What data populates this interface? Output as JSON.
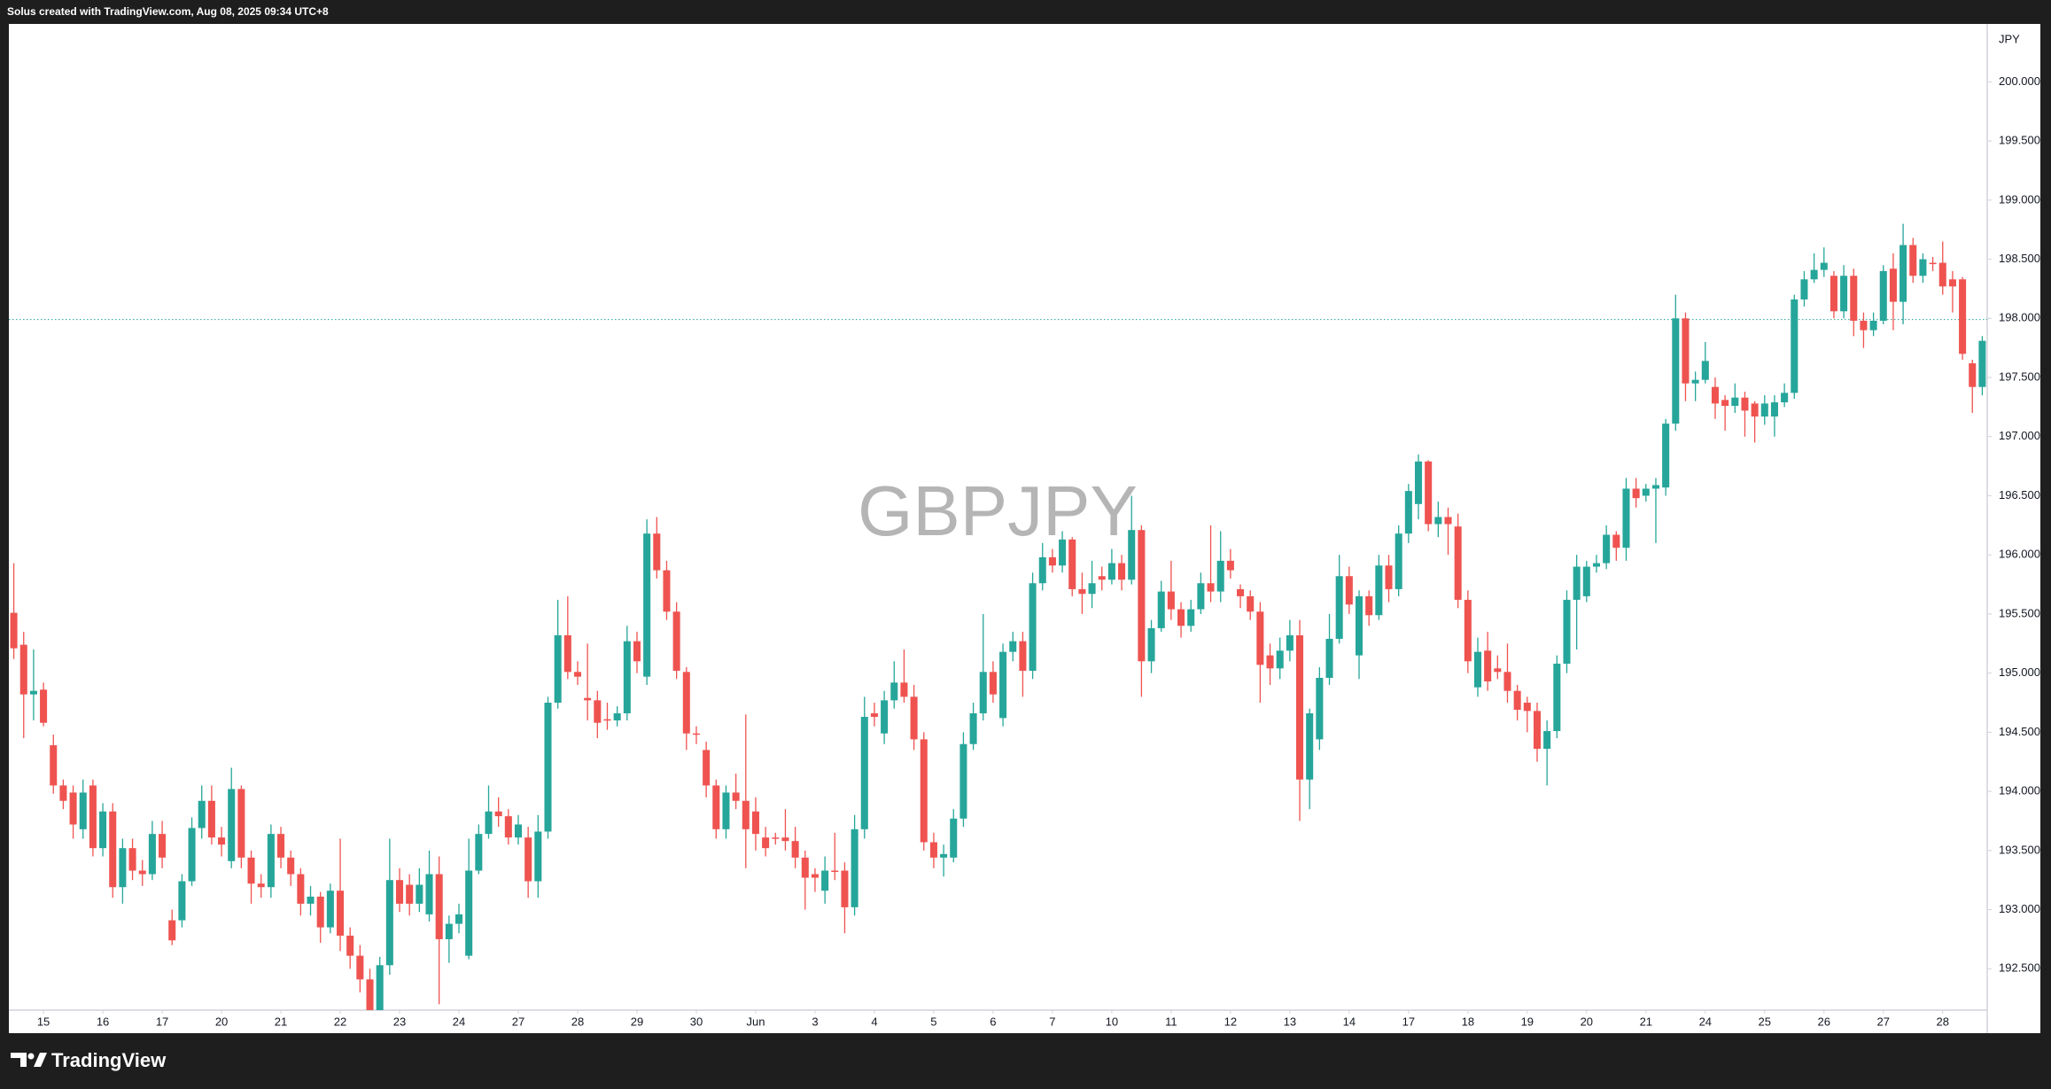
{
  "header": {
    "text": "Solus created with TradingView.com, Aug 08, 2025 09:34 UTC+8"
  },
  "footer": {
    "brand": "TradingView"
  },
  "chart_data": {
    "type": "candlestick",
    "title": "GBPJPY",
    "y_axis_label": "JPY",
    "up_color": "#26a69a",
    "down_color": "#ef5350",
    "grid": false,
    "price_line": 197.99,
    "ylim": [
      192.15,
      200.49
    ],
    "yticks": [
      {
        "value": 192.5,
        "label": "192.500"
      },
      {
        "value": 193,
        "label": "193.000"
      },
      {
        "value": 193.5,
        "label": "193.500"
      },
      {
        "value": 194,
        "label": "194.000"
      },
      {
        "value": 194.5,
        "label": "194.500"
      },
      {
        "value": 195,
        "label": "195.000"
      },
      {
        "value": 195.5,
        "label": "195.500"
      },
      {
        "value": 196,
        "label": "196.000"
      },
      {
        "value": 196.5,
        "label": "196.500"
      },
      {
        "value": 197,
        "label": "197.000"
      },
      {
        "value": 197.5,
        "label": "197.500"
      },
      {
        "value": 198,
        "label": "198.000"
      },
      {
        "value": 198.5,
        "label": "198.500"
      },
      {
        "value": 199,
        "label": "199.000"
      },
      {
        "value": 199.5,
        "label": "199.500"
      },
      {
        "value": 200,
        "label": "200.000"
      }
    ],
    "x": [
      null,
      null,
      null,
      "15",
      null,
      null,
      null,
      null,
      null,
      "16",
      null,
      null,
      null,
      null,
      null,
      "17",
      null,
      null,
      null,
      null,
      null,
      "20",
      null,
      null,
      null,
      null,
      null,
      "21",
      null,
      null,
      null,
      null,
      null,
      "22",
      null,
      null,
      null,
      null,
      null,
      "23",
      null,
      null,
      null,
      null,
      null,
      "24",
      null,
      null,
      null,
      null,
      null,
      "27",
      null,
      null,
      null,
      null,
      null,
      "28",
      null,
      null,
      null,
      null,
      null,
      "29",
      null,
      null,
      null,
      null,
      null,
      "30",
      null,
      null,
      null,
      null,
      null,
      "Jun",
      null,
      null,
      null,
      null,
      null,
      "3",
      null,
      null,
      null,
      null,
      null,
      "4",
      null,
      null,
      null,
      null,
      null,
      "5",
      null,
      null,
      null,
      null,
      null,
      "6",
      null,
      null,
      null,
      null,
      null,
      "7",
      null,
      null,
      null,
      null,
      null,
      "10",
      null,
      null,
      null,
      null,
      null,
      "11",
      null,
      null,
      null,
      null,
      null,
      "12",
      null,
      null,
      null,
      null,
      null,
      "13",
      null,
      null,
      null,
      null,
      null,
      "14",
      null,
      null,
      null,
      null,
      null,
      "17",
      null,
      null,
      null,
      null,
      null,
      "18",
      null,
      null,
      null,
      null,
      null,
      "19",
      null,
      null,
      null,
      null,
      null,
      "20",
      null,
      null,
      null,
      null,
      null,
      "21",
      null,
      null,
      null,
      null,
      null,
      "24",
      null,
      null,
      null,
      null,
      null,
      "25",
      null,
      null,
      null,
      null,
      null,
      "26",
      null,
      null,
      null,
      null,
      null,
      "27",
      null,
      null,
      null,
      null,
      null,
      "28",
      null,
      null,
      null,
      null
    ],
    "open": [
      195.51,
      195.24,
      194.82,
      194.86,
      194.39,
      194.05,
      193.99,
      193.68,
      194.05,
      193.52,
      193.83,
      193.19,
      193.52,
      193.33,
      193.3,
      193.64,
      192.91,
      192.91,
      193.24,
      193.69,
      193.92,
      193.61,
      193.41,
      194.02,
      193.44,
      193.22,
      193.19,
      193.64,
      193.44,
      193.3,
      193.05,
      193.11,
      192.85,
      193.16,
      192.78,
      192.61,
      192.41,
      192.15,
      192.53,
      193.25,
      193.21,
      193.05,
      192.96,
      193.3,
      192.75,
      192.88,
      192.61,
      193.33,
      193.64,
      193.83,
      193.79,
      193.61,
      193.61,
      193.24,
      193.66,
      194.75,
      195.32,
      195.01,
      194.79,
      194.77,
      194.61,
      194.6,
      194.66,
      195.27,
      194.97,
      196.18,
      195.87,
      195.52,
      195.01,
      194.49,
      194.35,
      194.05,
      193.68,
      193.99,
      193.92,
      193.83,
      193.61,
      193.61,
      193.61,
      193.58,
      193.44,
      193.3,
      193.16,
      193.33,
      193.33,
      193.02,
      193.68,
      194.66,
      194.49,
      194.77,
      194.92,
      194.8,
      194.44,
      193.57,
      193.44,
      193.44,
      193.77,
      194.4,
      194.66,
      195.01,
      194.62,
      195.18,
      195.27,
      195.02,
      195.76,
      195.98,
      195.91,
      196.13,
      195.71,
      195.67,
      195.82,
      195.79,
      195.93,
      195.79,
      196.21,
      195.1,
      195.38,
      195.69,
      195.54,
      195.4,
      195.54,
      195.76,
      195.69,
      195.95,
      195.71,
      195.65,
      195.52,
      195.15,
      195.04,
      195.19,
      195.32,
      194.1,
      194.44,
      194.96,
      195.29,
      195.82,
      195.15,
      195.65,
      195.49,
      195.91,
      195.71,
      196.18,
      196.43,
      196.79,
      196.26,
      196.32,
      196.24,
      195.62,
      194.88,
      195.19,
      195.04,
      195.01,
      194.85,
      194.75,
      194.68,
      194.36,
      194.51,
      195.08,
      195.62,
      195.65,
      195.9,
      195.93,
      196.17,
      196.06,
      196.56,
      196.5,
      196.56,
      196.57,
      197.11,
      198.0,
      197.45,
      197.48,
      197.42,
      197.31,
      197.26,
      197.33,
      197.28,
      197.17,
      197.17,
      197.29,
      197.37,
      198.16,
      198.33,
      198.41,
      198.36,
      198.06,
      198.36,
      197.98,
      197.9,
      197.98,
      198.42,
      198.14,
      198.62,
      198.36,
      198.47,
      198.47,
      198.33,
      198.33,
      197.62,
      197.42
    ],
    "high": [
      195.93,
      195.35,
      195.2,
      194.92,
      194.48,
      194.1,
      194.05,
      194.1,
      194.1,
      193.9,
      193.9,
      193.6,
      193.6,
      193.42,
      193.75,
      193.75,
      193.0,
      193.3,
      193.78,
      194.05,
      194.05,
      193.7,
      194.2,
      194.05,
      193.5,
      193.3,
      193.72,
      193.7,
      193.5,
      193.35,
      193.2,
      193.15,
      193.22,
      193.6,
      192.85,
      192.7,
      192.5,
      192.6,
      193.6,
      193.35,
      193.3,
      193.35,
      193.5,
      193.45,
      192.95,
      193.05,
      193.6,
      193.72,
      194.05,
      193.95,
      193.85,
      193.8,
      193.7,
      193.8,
      194.8,
      195.62,
      195.65,
      195.1,
      195.25,
      194.85,
      194.75,
      194.72,
      195.4,
      195.35,
      196.3,
      196.32,
      195.95,
      195.6,
      195.05,
      194.55,
      194.42,
      194.1,
      194.05,
      194.15,
      194.65,
      193.95,
      193.7,
      193.65,
      193.85,
      193.7,
      193.5,
      193.35,
      193.45,
      193.65,
      193.4,
      193.8,
      194.8,
      194.75,
      194.85,
      195.1,
      195.2,
      194.9,
      194.5,
      193.65,
      193.55,
      193.85,
      194.5,
      194.75,
      195.5,
      195.1,
      195.25,
      195.35,
      195.35,
      195.85,
      196.1,
      196.05,
      196.2,
      196.15,
      195.85,
      195.95,
      195.9,
      196.05,
      196.0,
      196.5,
      196.25,
      195.45,
      195.78,
      195.95,
      195.6,
      195.62,
      195.85,
      196.25,
      196.2,
      196.05,
      195.75,
      195.7,
      195.6,
      195.25,
      195.3,
      195.45,
      195.45,
      194.7,
      195.05,
      195.5,
      196.0,
      195.9,
      195.7,
      195.7,
      196.0,
      196.0,
      196.25,
      196.6,
      196.85,
      196.8,
      196.45,
      196.4,
      196.35,
      195.7,
      195.3,
      195.35,
      195.15,
      195.25,
      194.9,
      194.8,
      194.75,
      194.6,
      195.15,
      195.7,
      196.0,
      195.95,
      196.0,
      196.25,
      196.2,
      196.65,
      196.65,
      196.6,
      196.65,
      197.15,
      198.2,
      198.05,
      197.55,
      197.8,
      197.5,
      197.35,
      197.45,
      197.38,
      197.3,
      197.35,
      197.35,
      197.45,
      198.2,
      198.4,
      198.55,
      198.6,
      198.4,
      198.45,
      198.42,
      198.05,
      198.05,
      198.45,
      198.55,
      198.8,
      198.68,
      198.55,
      198.52,
      198.65,
      198.4,
      198.35,
      197.65,
      197.85
    ],
    "low": [
      195.12,
      194.45,
      194.6,
      194.55,
      193.98,
      193.85,
      193.6,
      193.6,
      193.45,
      193.45,
      193.1,
      193.05,
      193.25,
      193.2,
      193.25,
      193.35,
      192.7,
      192.85,
      193.2,
      193.6,
      193.55,
      193.45,
      193.35,
      193.35,
      193.05,
      193.1,
      193.1,
      193.35,
      193.2,
      192.95,
      192.95,
      192.72,
      192.8,
      192.65,
      192.5,
      192.3,
      192.15,
      192.15,
      192.45,
      192.98,
      192.95,
      192.98,
      192.9,
      192.2,
      192.55,
      192.8,
      192.58,
      193.3,
      193.6,
      193.7,
      193.55,
      193.55,
      193.1,
      193.1,
      193.6,
      194.7,
      194.95,
      194.9,
      194.6,
      194.45,
      194.52,
      194.55,
      194.6,
      195.0,
      194.9,
      195.8,
      195.45,
      194.95,
      194.35,
      194.4,
      193.95,
      193.6,
      193.6,
      193.85,
      193.35,
      193.5,
      193.45,
      193.55,
      193.5,
      193.35,
      193.0,
      193.15,
      193.05,
      193.25,
      192.8,
      192.95,
      193.6,
      194.55,
      194.4,
      194.7,
      194.75,
      194.35,
      193.5,
      193.35,
      193.28,
      193.4,
      193.7,
      194.35,
      194.6,
      194.75,
      194.55,
      195.1,
      194.8,
      194.95,
      195.7,
      195.85,
      195.85,
      195.65,
      195.5,
      195.55,
      195.7,
      195.75,
      195.7,
      195.75,
      194.8,
      195.0,
      195.35,
      195.45,
      195.3,
      195.35,
      195.5,
      195.6,
      195.6,
      195.8,
      195.55,
      195.45,
      194.75,
      194.9,
      194.95,
      195.1,
      193.75,
      193.85,
      194.35,
      194.9,
      195.25,
      195.5,
      194.95,
      195.4,
      195.45,
      195.6,
      195.65,
      196.1,
      196.3,
      196.2,
      196.15,
      196.0,
      195.55,
      195.0,
      194.8,
      194.85,
      194.95,
      194.75,
      194.6,
      194.5,
      194.25,
      194.05,
      194.45,
      195.0,
      195.2,
      195.6,
      195.85,
      195.88,
      195.95,
      195.95,
      196.4,
      196.45,
      196.1,
      196.5,
      197.05,
      197.3,
      197.3,
      197.45,
      197.15,
      197.05,
      197.2,
      197.0,
      196.95,
      197.1,
      197.0,
      197.25,
      197.32,
      198.1,
      198.3,
      198.35,
      198.0,
      198.0,
      197.85,
      197.75,
      197.85,
      197.95,
      197.9,
      197.95,
      198.3,
      198.3,
      198.4,
      198.2,
      198.05,
      197.65,
      197.2,
      197.35
    ],
    "close": [
      195.21,
      194.82,
      194.85,
      194.58,
      194.05,
      193.92,
      193.72,
      193.99,
      193.52,
      193.83,
      193.19,
      193.52,
      193.33,
      193.3,
      193.64,
      193.44,
      192.74,
      193.24,
      193.69,
      193.92,
      193.61,
      193.55,
      194.02,
      193.44,
      193.22,
      193.19,
      193.64,
      193.44,
      193.3,
      193.05,
      193.11,
      192.85,
      193.16,
      192.78,
      192.61,
      192.41,
      192.15,
      192.53,
      193.25,
      193.05,
      193.05,
      193.21,
      193.3,
      192.75,
      192.88,
      192.96,
      193.33,
      193.64,
      193.83,
      193.79,
      193.61,
      193.72,
      193.24,
      193.66,
      194.75,
      195.32,
      195.01,
      194.97,
      194.77,
      194.58,
      194.6,
      194.66,
      195.27,
      195.1,
      196.18,
      195.87,
      195.52,
      195.02,
      194.49,
      194.48,
      194.05,
      193.68,
      193.99,
      193.92,
      193.68,
      193.64,
      193.52,
      193.6,
      193.58,
      193.44,
      193.27,
      193.27,
      193.33,
      193.32,
      193.02,
      193.68,
      194.63,
      194.63,
      194.77,
      194.92,
      194.8,
      194.44,
      193.57,
      193.44,
      193.47,
      193.77,
      194.4,
      194.66,
      195.01,
      194.82,
      195.18,
      195.27,
      195.02,
      195.76,
      195.98,
      195.91,
      196.13,
      195.71,
      195.67,
      195.76,
      195.79,
      195.93,
      195.79,
      196.21,
      195.1,
      195.38,
      195.69,
      195.54,
      195.4,
      195.54,
      195.76,
      195.69,
      195.95,
      195.87,
      195.65,
      195.52,
      195.07,
      195.04,
      195.19,
      195.32,
      194.1,
      194.66,
      194.96,
      195.29,
      195.82,
      195.58,
      195.65,
      195.49,
      195.91,
      195.71,
      196.18,
      196.54,
      196.79,
      196.26,
      196.32,
      196.26,
      195.62,
      195.1,
      195.18,
      194.93,
      195.01,
      194.85,
      194.69,
      194.68,
      194.36,
      194.51,
      195.08,
      195.62,
      195.9,
      195.9,
      195.93,
      196.17,
      196.06,
      196.56,
      196.48,
      196.56,
      196.59,
      197.11,
      198.0,
      197.45,
      197.48,
      197.64,
      197.28,
      197.26,
      197.33,
      197.22,
      197.17,
      197.28,
      197.29,
      197.37,
      198.16,
      198.33,
      198.41,
      198.47,
      198.06,
      198.36,
      197.98,
      197.9,
      197.98,
      198.4,
      198.14,
      198.62,
      198.36,
      198.5,
      198.46,
      198.27,
      198.27,
      197.7,
      197.42,
      197.81
    ]
  }
}
